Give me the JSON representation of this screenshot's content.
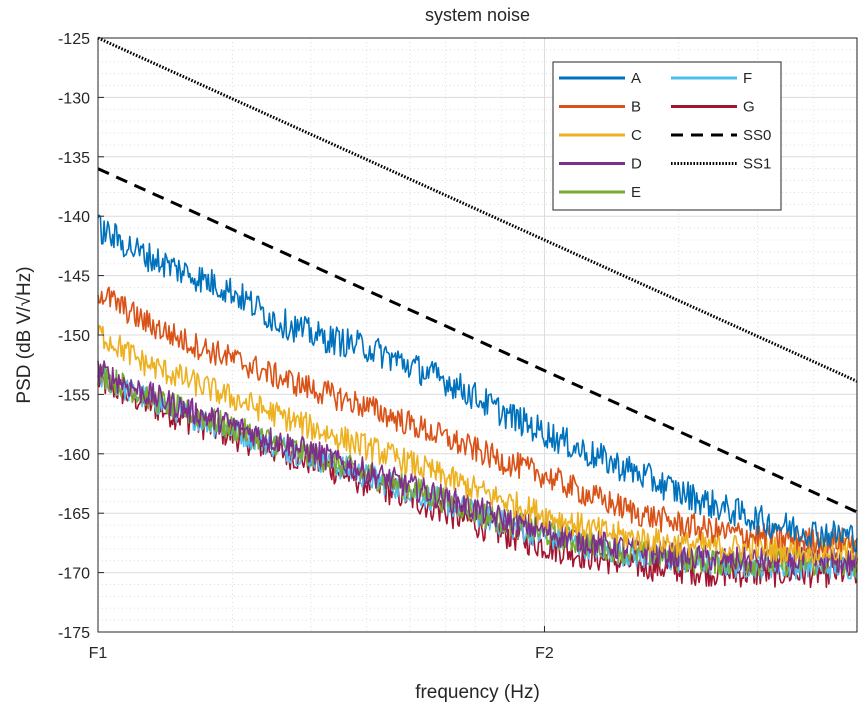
{
  "chart_data": {
    "type": "line",
    "title": "system noise",
    "xlabel": "frequency (Hz)",
    "ylabel": "PSD (dB V/√Hz)",
    "x_scale": "log",
    "x_tick_labels": [
      "F1",
      "F2"
    ],
    "ylim": [
      -175,
      -125
    ],
    "yticks": [
      -175,
      -170,
      -165,
      -160,
      -155,
      -150,
      -145,
      -140,
      -135,
      -130,
      -125
    ],
    "grid": "major and minor",
    "legend_location": "top-right",
    "x_points": [
      0,
      0.1,
      0.2,
      0.3,
      0.4,
      0.5,
      0.6,
      0.7,
      0.8,
      0.9,
      1.0,
      1.1,
      1.2,
      1.3,
      1.4,
      1.5,
      1.6,
      1.7
    ],
    "x_points_note_in_decades_from_F1": "",
    "series": [
      {
        "name": "A",
        "color": "#0072BD",
        "style": "solid",
        "noise": 0.9,
        "values": [
          -141.0,
          -143.2,
          -144.8,
          -146.3,
          -148.8,
          -150.2,
          -151.0,
          -152.6,
          -154.2,
          -156.4,
          -158.2,
          -160.0,
          -161.5,
          -163.2,
          -164.6,
          -165.8,
          -166.6,
          -167.0
        ]
      },
      {
        "name": "B",
        "color": "#D95319",
        "style": "solid",
        "noise": 0.8,
        "values": [
          -146.3,
          -148.8,
          -150.6,
          -152.0,
          -153.5,
          -154.8,
          -156.0,
          -157.5,
          -159.0,
          -160.5,
          -161.8,
          -163.5,
          -164.9,
          -165.9,
          -166.6,
          -167.0,
          -167.3,
          -167.3
        ]
      },
      {
        "name": "C",
        "color": "#EDB120",
        "style": "solid",
        "noise": 0.8,
        "values": [
          -149.8,
          -152.3,
          -153.8,
          -155.3,
          -156.7,
          -158.1,
          -159.4,
          -160.8,
          -162.3,
          -163.8,
          -165.1,
          -166.3,
          -167.1,
          -167.6,
          -167.8,
          -168.0,
          -168.1,
          -168.2
        ]
      },
      {
        "name": "D",
        "color": "#7E2F8E",
        "style": "solid",
        "noise": 0.8,
        "values": [
          -153.0,
          -154.8,
          -156.3,
          -157.6,
          -158.9,
          -160.1,
          -161.5,
          -162.7,
          -164.0,
          -165.4,
          -166.5,
          -167.4,
          -168.1,
          -168.6,
          -168.9,
          -169.0,
          -169.0,
          -169.1
        ]
      },
      {
        "name": "E",
        "color": "#77AC30",
        "style": "solid",
        "noise": 0.8,
        "values": [
          -153.2,
          -155.0,
          -156.5,
          -157.8,
          -159.1,
          -160.3,
          -161.7,
          -162.9,
          -164.2,
          -165.6,
          -166.7,
          -167.6,
          -168.3,
          -168.8,
          -169.1,
          -169.2,
          -169.2,
          -169.3
        ]
      },
      {
        "name": "F",
        "color": "#4DBEEE",
        "style": "solid",
        "noise": 0.8,
        "values": [
          -153.4,
          -155.2,
          -156.7,
          -158.0,
          -159.3,
          -160.5,
          -161.9,
          -163.1,
          -164.4,
          -165.8,
          -166.9,
          -167.8,
          -168.5,
          -169.0,
          -169.3,
          -169.4,
          -169.4,
          -169.5
        ]
      },
      {
        "name": "G",
        "color": "#A2142F",
        "style": "solid",
        "noise": 0.9,
        "values": [
          -153.8,
          -155.6,
          -157.1,
          -158.4,
          -159.7,
          -160.9,
          -162.4,
          -163.7,
          -165.2,
          -166.6,
          -167.7,
          -168.6,
          -169.3,
          -169.7,
          -170.0,
          -170.0,
          -170.0,
          -170.0
        ]
      },
      {
        "name": "SS0",
        "color": "#000000",
        "style": "dashed",
        "noise": 0,
        "values": [
          -136.0,
          -137.7,
          -139.4,
          -141.1,
          -142.8,
          -144.5,
          -146.2,
          -147.9,
          -149.6,
          -151.3,
          -153.0,
          -154.7,
          -156.4,
          -158.1,
          -159.8,
          -161.5,
          -163.2,
          -164.9
        ]
      },
      {
        "name": "SS1",
        "color": "#000000",
        "style": "dotted",
        "noise": 0,
        "values": [
          -125.0,
          -126.7,
          -128.4,
          -130.1,
          -131.8,
          -133.5,
          -135.2,
          -136.9,
          -138.6,
          -140.3,
          -142.0,
          -143.7,
          -145.4,
          -147.1,
          -148.8,
          -150.5,
          -152.2,
          -153.9
        ]
      }
    ],
    "legend_layout": [
      [
        "A",
        "F"
      ],
      [
        "B",
        "G"
      ],
      [
        "C",
        "SS0"
      ],
      [
        "D",
        "SS1"
      ],
      [
        "E",
        null
      ]
    ]
  }
}
